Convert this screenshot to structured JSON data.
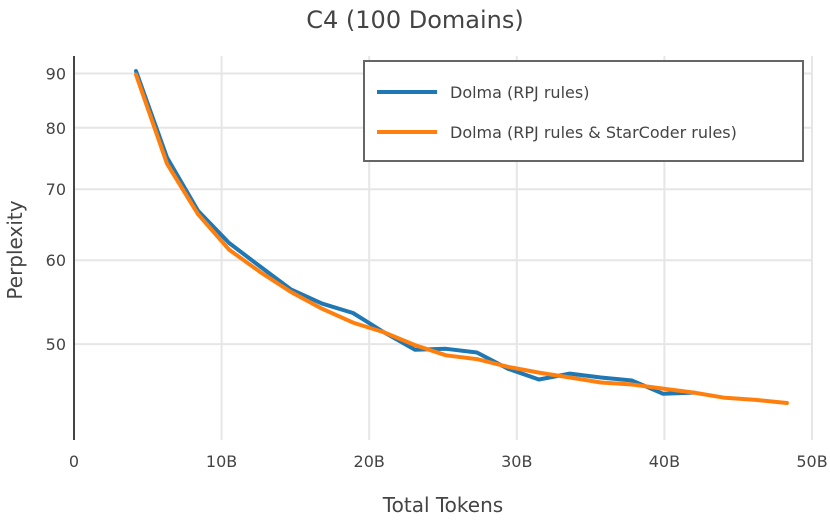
{
  "chart_data": {
    "type": "line",
    "title": "C4 (100 Domains)",
    "xlabel": "Total Tokens",
    "ylabel": "Perplexity",
    "xlim": [
      0,
      50
    ],
    "ylim": [
      40.6,
      93.5
    ],
    "yscale": "log",
    "grid": true,
    "legend_position": "top-right",
    "x_ticks": [
      {
        "value": 0,
        "label": "0"
      },
      {
        "value": 10,
        "label": "10B"
      },
      {
        "value": 20,
        "label": "20B"
      },
      {
        "value": 30,
        "label": "30B"
      },
      {
        "value": 40,
        "label": "40B"
      },
      {
        "value": 50,
        "label": "50B"
      }
    ],
    "y_ticks": [
      {
        "value": 50,
        "label": "50"
      },
      {
        "value": 60,
        "label": "60"
      },
      {
        "value": 70,
        "label": "70"
      },
      {
        "value": 80,
        "label": "80"
      },
      {
        "value": 90,
        "label": "90"
      }
    ],
    "series": [
      {
        "name": "Dolma (RPJ rules)",
        "color": "#1f77b4",
        "x": [
          4.2,
          6.3,
          8.4,
          10.5,
          12.6,
          14.7,
          16.8,
          18.9,
          21.0,
          23.1,
          25.2,
          27.3,
          29.4,
          31.5,
          33.6,
          35.7,
          37.8,
          39.9,
          42.0
        ],
        "y": [
          90.5,
          75.0,
          66.8,
          62.3,
          59.2,
          56.3,
          54.6,
          53.5,
          51.3,
          49.4,
          49.5,
          49.1,
          47.4,
          46.3,
          46.9,
          46.5,
          46.2,
          44.9,
          45.0
        ]
      },
      {
        "name": "Dolma (RPJ rules & StarCoder rules)",
        "color": "#ff7f0e",
        "x": [
          4.2,
          6.3,
          8.4,
          10.5,
          12.6,
          14.7,
          16.8,
          18.9,
          21.0,
          23.1,
          25.2,
          27.3,
          29.4,
          31.5,
          33.6,
          35.7,
          37.8,
          39.9,
          42.0,
          44.1,
          46.2,
          48.3
        ],
        "y": [
          89.8,
          74.0,
          66.3,
          61.4,
          58.5,
          56.0,
          54.0,
          52.4,
          51.3,
          49.9,
          48.8,
          48.4,
          47.6,
          47.0,
          46.5,
          46.0,
          45.8,
          45.4,
          45.0,
          44.5,
          44.3,
          44.0
        ]
      }
    ]
  }
}
